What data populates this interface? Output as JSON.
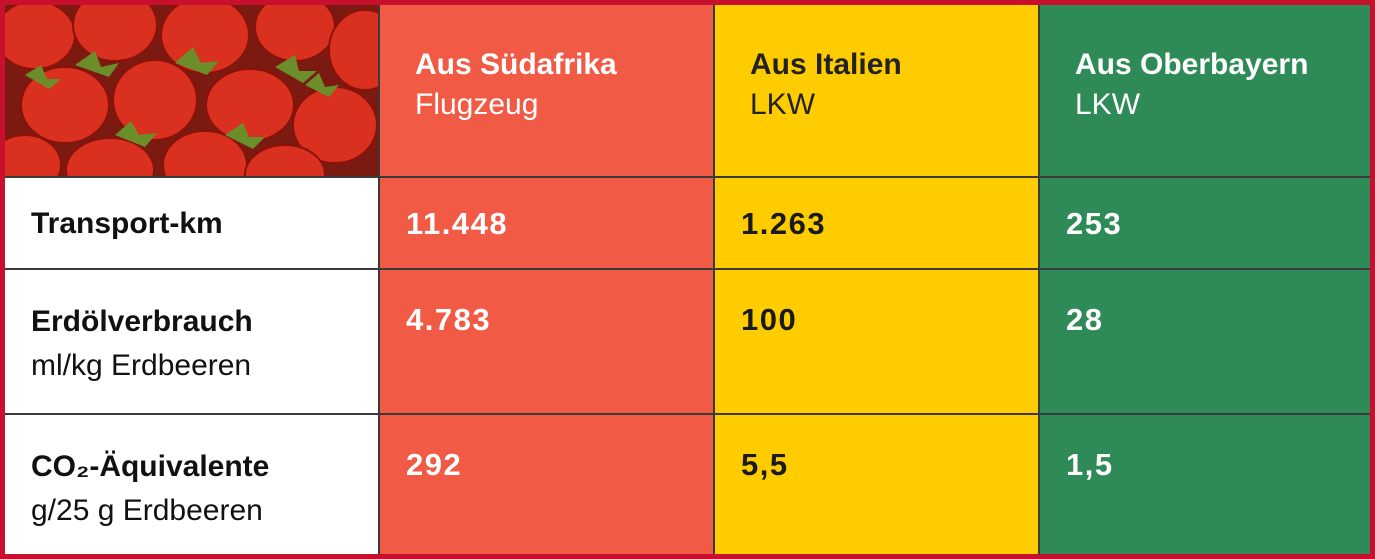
{
  "table": {
    "header": [
      {
        "title": "Aus Südafrika",
        "subtitle": "Flugzeug"
      },
      {
        "title": "Aus Italien",
        "subtitle": "LKW"
      },
      {
        "title": "Aus Oberbayern",
        "subtitle": "LKW"
      }
    ],
    "rows": [
      {
        "label": "Transport-km",
        "values": [
          "11.448",
          "1.263",
          "253"
        ]
      },
      {
        "label": "Erdölverbrauch",
        "unit": "ml/kg Erdbeeren",
        "values": [
          "4.783",
          "100",
          "28"
        ]
      },
      {
        "label": "CO₂-Äquivalente",
        "unit": "g/25 g Erdbeeren",
        "values": [
          "292",
          "5,5",
          "1,5"
        ]
      }
    ]
  }
}
